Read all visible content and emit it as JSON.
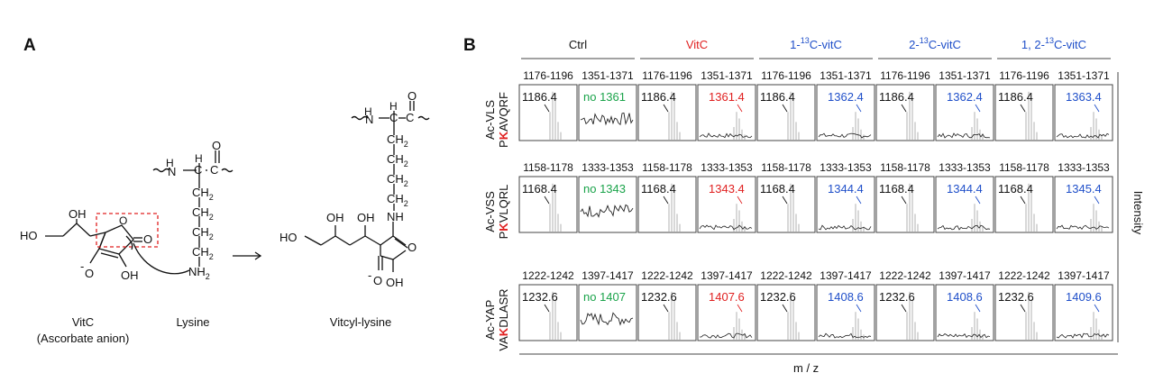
{
  "panel_a": {
    "label": "A",
    "vitc_name": "VitC",
    "vitc_sub": "(Ascorbate anion)",
    "lysine_name": "Lysine",
    "product_name": "Vitcyl-lysine",
    "atoms": {
      "OH": "OH",
      "HO": "HO",
      "O": "O",
      "Ominus": "O",
      "minus": "-",
      "NH": "N",
      "H": "H",
      "C": "C",
      "CH2": "CH",
      "sub2": "2",
      "NH2": "NH",
      "HNN": "N",
      "HN_H": "H"
    }
  },
  "panel_b": {
    "label": "B",
    "conditions": [
      {
        "label": "Ctrl",
        "color": "#111111",
        "sup_pre": "",
        "sup": "",
        "sup_post": ""
      },
      {
        "label": "VitC",
        "color": "#e02020",
        "sup_pre": "",
        "sup": "",
        "sup_post": ""
      },
      {
        "label": "",
        "color": "#1f4fc9",
        "sup_pre": "1-",
        "sup": "13",
        "sup_post": "C-vitC"
      },
      {
        "label": "",
        "color": "#1f4fc9",
        "sup_pre": "2-",
        "sup": "13",
        "sup_post": "C-vitC"
      },
      {
        "label": "",
        "color": "#1f4fc9",
        "sup_pre": "1, 2-",
        "sup": "13",
        "sup_post": "C-vitC"
      }
    ],
    "rows": [
      {
        "peptide_line1": "Ac-VLS",
        "peptide_line2_pre": "P",
        "peptide_line2_k": "K",
        "peptide_line2_post": "AVQRF",
        "ranges": [
          "1176-1196",
          "1351-1371"
        ],
        "left_value": "1186.4",
        "right_values": [
          "no 1361",
          "1361.4",
          "1362.4",
          "1362.4",
          "1363.4"
        ]
      },
      {
        "peptide_line1": "Ac-VSS",
        "peptide_line2_pre": "P",
        "peptide_line2_k": "K",
        "peptide_line2_post": "VLQRL",
        "ranges": [
          "1158-1178",
          "1333-1353"
        ],
        "left_value": "1168.4",
        "right_values": [
          "no 1343",
          "1343.4",
          "1344.4",
          "1344.4",
          "1345.4"
        ]
      },
      {
        "peptide_line1": "Ac-YAP",
        "peptide_line2_pre": "VA",
        "peptide_line2_k": "K",
        "peptide_line2_post": "DLASR",
        "ranges": [
          "1222-1242",
          "1397-1417"
        ],
        "left_value": "1232.6",
        "right_values": [
          "no 1407",
          "1407.6",
          "1408.6",
          "1408.6",
          "1409.6"
        ]
      }
    ],
    "xlabel": "m / z",
    "ylabel": "Intensity",
    "colors": {
      "ctrl": "#111111",
      "vitc": "#e02020",
      "isotope": "#1f4fc9",
      "absent": "#1aa34a",
      "peak": "#b8b8b8",
      "noise": "#222222"
    }
  }
}
